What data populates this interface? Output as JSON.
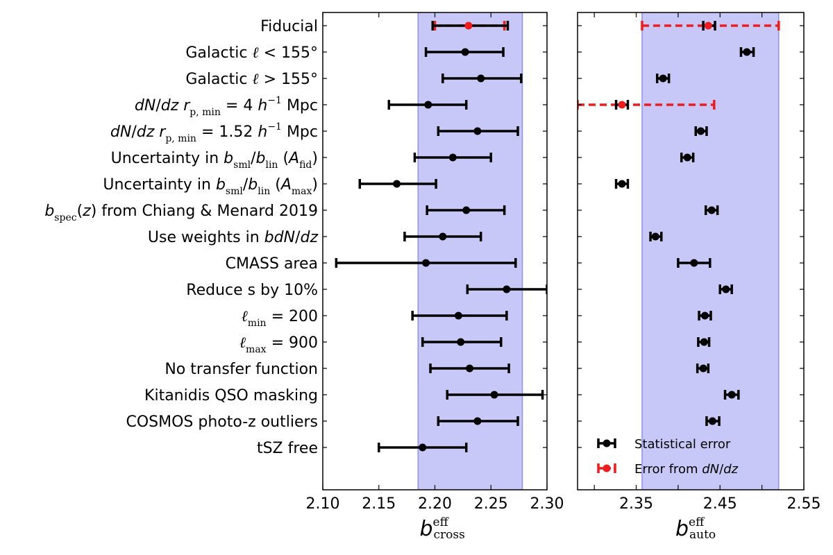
{
  "chart_data": [
    {
      "type": "scatter",
      "subtype": "errorbar-forest",
      "panel": "left",
      "xlabel": {
        "base": "b",
        "sup": "eff",
        "sub": "cross"
      },
      "xlim": [
        2.1,
        2.3
      ],
      "xticks": [
        "2.10",
        "2.15",
        "2.20",
        "2.25",
        "2.30"
      ],
      "xtick_values": [
        2.1,
        2.15,
        2.2,
        2.25,
        2.3
      ],
      "band": [
        2.185,
        2.278
      ],
      "band_color": "#c8c8f8",
      "band_edge_color": "#8f8fe6",
      "stat_color": "#000000",
      "dndz_color": "#ee1c1c",
      "points": [
        {
          "value": 2.23,
          "low": 2.198,
          "high": 2.265,
          "dndz_low": 2.2,
          "dndz_high": 2.262
        },
        {
          "value": 2.227,
          "low": 2.192,
          "high": 2.261
        },
        {
          "value": 2.241,
          "low": 2.207,
          "high": 2.277
        },
        {
          "value": 2.194,
          "low": 2.159,
          "high": 2.228
        },
        {
          "value": 2.238,
          "low": 2.203,
          "high": 2.274
        },
        {
          "value": 2.216,
          "low": 2.182,
          "high": 2.25
        },
        {
          "value": 2.166,
          "low": 2.133,
          "high": 2.201
        },
        {
          "value": 2.228,
          "low": 2.193,
          "high": 2.262
        },
        {
          "value": 2.207,
          "low": 2.173,
          "high": 2.241
        },
        {
          "value": 2.192,
          "low": 2.112,
          "high": 2.272
        },
        {
          "value": 2.264,
          "low": 2.229,
          "high": 2.3
        },
        {
          "value": 2.221,
          "low": 2.18,
          "high": 2.264
        },
        {
          "value": 2.223,
          "low": 2.189,
          "high": 2.259
        },
        {
          "value": 2.231,
          "low": 2.196,
          "high": 2.266
        },
        {
          "value": 2.253,
          "low": 2.211,
          "high": 2.296
        },
        {
          "value": 2.238,
          "low": 2.203,
          "high": 2.274
        },
        {
          "value": 2.189,
          "low": 2.15,
          "high": 2.228
        }
      ]
    },
    {
      "type": "scatter",
      "subtype": "errorbar-forest",
      "panel": "right",
      "xlabel": {
        "base": "b",
        "sup": "eff",
        "sub": "auto"
      },
      "xlim": [
        2.28,
        2.55
      ],
      "xticks": [
        "2.35",
        "2.45",
        "2.55"
      ],
      "xtick_values": [
        2.35,
        2.45,
        2.55
      ],
      "minor_ticks": [
        2.3,
        2.4,
        2.5
      ],
      "band": [
        2.357,
        2.52
      ],
      "band_color": "#c8c8f8",
      "band_edge_color": "#8f8fe6",
      "stat_color": "#000000",
      "dndz_color": "#ee1c1c",
      "points": [
        {
          "value": 2.436,
          "low": 2.43,
          "high": 2.444,
          "dndz_low": 2.357,
          "dndz_high": 2.52
        },
        {
          "value": 2.482,
          "low": 2.475,
          "high": 2.49
        },
        {
          "value": 2.382,
          "low": 2.375,
          "high": 2.389
        },
        {
          "value": 2.333,
          "low": 2.326,
          "high": 2.34,
          "dndz_low": 2.28,
          "dndz_high": 2.443
        },
        {
          "value": 2.427,
          "low": 2.421,
          "high": 2.434
        },
        {
          "value": 2.411,
          "low": 2.404,
          "high": 2.418
        },
        {
          "value": 2.333,
          "low": 2.326,
          "high": 2.34
        },
        {
          "value": 2.44,
          "low": 2.433,
          "high": 2.447
        },
        {
          "value": 2.373,
          "low": 2.367,
          "high": 2.38
        },
        {
          "value": 2.419,
          "low": 2.4,
          "high": 2.438
        },
        {
          "value": 2.457,
          "low": 2.45,
          "high": 2.464
        },
        {
          "value": 2.432,
          "low": 2.425,
          "high": 2.439
        },
        {
          "value": 2.431,
          "low": 2.424,
          "high": 2.437
        },
        {
          "value": 2.43,
          "low": 2.423,
          "high": 2.436
        },
        {
          "value": 2.464,
          "low": 2.456,
          "high": 2.472
        },
        {
          "value": 2.441,
          "low": 2.434,
          "high": 2.449
        }
      ]
    }
  ],
  "rows": [
    {
      "parts": [
        {
          "t": "Fiducial"
        }
      ]
    },
    {
      "parts": [
        {
          "t": "Galactic "
        },
        {
          "t": "ℓ",
          "c": "serif"
        },
        {
          "t": " < 155°"
        }
      ]
    },
    {
      "parts": [
        {
          "t": "Galactic "
        },
        {
          "t": "ℓ",
          "c": "serif"
        },
        {
          "t": " > 155°"
        }
      ]
    },
    {
      "parts": [
        {
          "t": "dN",
          "c": "it"
        },
        {
          "t": "/"
        },
        {
          "t": "dz r",
          "c": "it"
        },
        {
          "t": "p, min",
          "c": "sub"
        },
        {
          "t": " = 4 "
        },
        {
          "t": "h",
          "c": "it"
        },
        {
          "t": "−1",
          "c": "sup"
        },
        {
          "t": " Mpc"
        }
      ]
    },
    {
      "parts": [
        {
          "t": "dN",
          "c": "it"
        },
        {
          "t": "/"
        },
        {
          "t": "dz r",
          "c": "it"
        },
        {
          "t": "p, min",
          "c": "sub"
        },
        {
          "t": " = 1.52 "
        },
        {
          "t": "h",
          "c": "it"
        },
        {
          "t": "−1",
          "c": "sup"
        },
        {
          "t": " Mpc"
        }
      ]
    },
    {
      "parts": [
        {
          "t": "Uncertainty in "
        },
        {
          "t": "b",
          "c": "it"
        },
        {
          "t": "sml",
          "c": "sub"
        },
        {
          "t": "/"
        },
        {
          "t": "b",
          "c": "it"
        },
        {
          "t": "lin",
          "c": "sub"
        },
        {
          "t": " ("
        },
        {
          "t": "A",
          "c": "it"
        },
        {
          "t": "fid",
          "c": "sub"
        },
        {
          "t": ")"
        }
      ]
    },
    {
      "parts": [
        {
          "t": "Uncertainty in "
        },
        {
          "t": "b",
          "c": "it"
        },
        {
          "t": "sml",
          "c": "sub"
        },
        {
          "t": "/"
        },
        {
          "t": "b",
          "c": "it"
        },
        {
          "t": "lin",
          "c": "sub"
        },
        {
          "t": " ("
        },
        {
          "t": "A",
          "c": "it"
        },
        {
          "t": "max",
          "c": "sub"
        },
        {
          "t": ")"
        }
      ]
    },
    {
      "parts": [
        {
          "t": "b",
          "c": "it"
        },
        {
          "t": "spec",
          "c": "sub"
        },
        {
          "t": "("
        },
        {
          "t": "z",
          "c": "it"
        },
        {
          "t": ") from Chiang & Menard 2019"
        }
      ]
    },
    {
      "parts": [
        {
          "t": "Use weights in "
        },
        {
          "t": "bdN",
          "c": "it"
        },
        {
          "t": "/"
        },
        {
          "t": "dz",
          "c": "it"
        }
      ]
    },
    {
      "parts": [
        {
          "t": "CMASS area"
        }
      ]
    },
    {
      "parts": [
        {
          "t": "Reduce s by 10%"
        }
      ]
    },
    {
      "parts": [
        {
          "t": "ℓ",
          "c": "serif"
        },
        {
          "t": "min",
          "c": "sub"
        },
        {
          "t": " = 200"
        }
      ]
    },
    {
      "parts": [
        {
          "t": "ℓ",
          "c": "serif"
        },
        {
          "t": "max",
          "c": "sub"
        },
        {
          "t": " = 900"
        }
      ]
    },
    {
      "parts": [
        {
          "t": "No transfer function"
        }
      ]
    },
    {
      "parts": [
        {
          "t": "Kitanidis QSO masking"
        }
      ]
    },
    {
      "parts": [
        {
          "t": "COSMOS photo-z outliers"
        }
      ]
    },
    {
      "parts": [
        {
          "t": "tSZ free"
        }
      ]
    }
  ],
  "legend": {
    "placement": "lower-left",
    "items": [
      {
        "label_parts": [
          {
            "t": "Statistical error"
          }
        ],
        "color": "#000000",
        "style": "solid"
      },
      {
        "label_parts": [
          {
            "t": "Error from "
          },
          {
            "t": "dN",
            "c": "it"
          },
          {
            "t": "/"
          },
          {
            "t": "dz",
            "c": "it"
          }
        ],
        "color": "#ee1c1c",
        "style": "dashed"
      }
    ]
  }
}
